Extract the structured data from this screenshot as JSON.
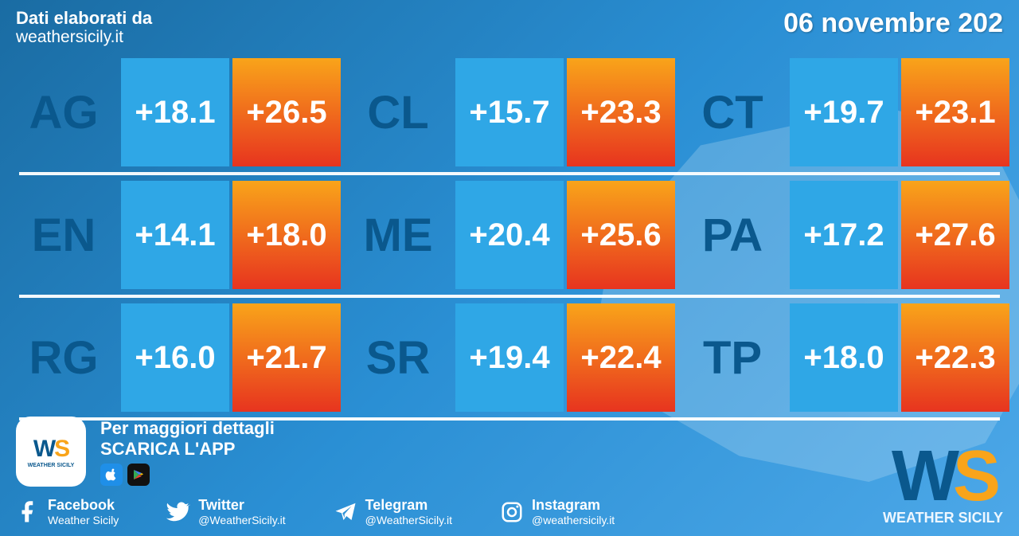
{
  "header": {
    "credit": "Dati elaborati da",
    "site": "weathersicily.it",
    "date": "06 novembre 202"
  },
  "colors": {
    "low_bg": "#2fa7e6",
    "high_bg_top": "#f9a41a",
    "high_bg_bottom": "#e7341f",
    "code_text": "#0a588d",
    "divider": "#ffffff",
    "page_bg_from": "#1a6ca3",
    "page_bg_to": "#4da8e8"
  },
  "grid": {
    "rows": [
      [
        {
          "code": "AG",
          "low": "+18.1",
          "high": "+26.5"
        },
        {
          "code": "CL",
          "low": "+15.7",
          "high": "+23.3"
        },
        {
          "code": "CT",
          "low": "+19.7",
          "high": "+23.1"
        }
      ],
      [
        {
          "code": "EN",
          "low": "+14.1",
          "high": "+18.0"
        },
        {
          "code": "ME",
          "low": "+20.4",
          "high": "+25.6"
        },
        {
          "code": "PA",
          "low": "+17.2",
          "high": "+27.6"
        }
      ],
      [
        {
          "code": "RG",
          "low": "+16.0",
          "high": "+21.7"
        },
        {
          "code": "SR",
          "low": "+19.4",
          "high": "+22.4"
        },
        {
          "code": "TP",
          "low": "+18.0",
          "high": "+22.3"
        }
      ]
    ]
  },
  "promo": {
    "line1": "Per maggiori dettagli",
    "line2": "SCARICA L'APP",
    "logo_text": "WS",
    "logo_sub": "WEATHER SICILY"
  },
  "socials": {
    "facebook": {
      "label": "Facebook",
      "handle": "Weather Sicily"
    },
    "twitter": {
      "label": "Twitter",
      "handle": "@WeatherSicily.it"
    },
    "telegram": {
      "label": "Telegram",
      "handle": "@WeatherSicily.it"
    },
    "instagram": {
      "label": "Instagram",
      "handle": "@weathersicily.it"
    }
  },
  "brand": {
    "big_text": "WS",
    "big_sub": "WEATHER SICILY",
    "w_color": "#0a588d",
    "s_color": "#f9a41a"
  }
}
